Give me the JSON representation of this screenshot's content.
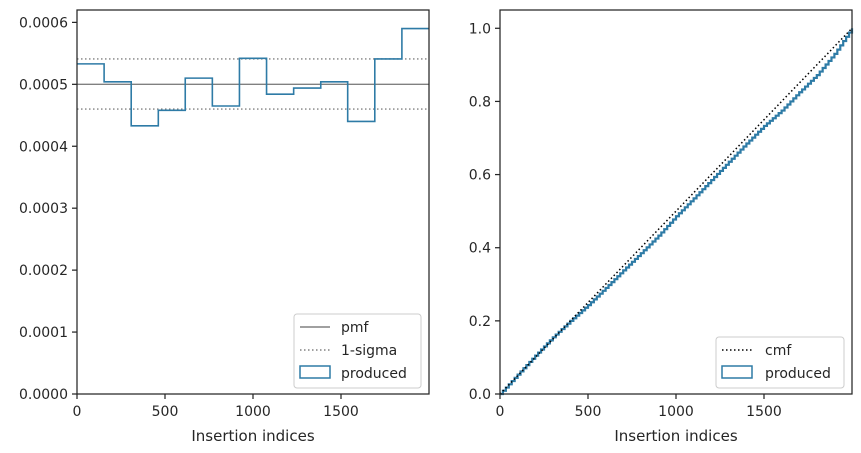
{
  "chart_data": [
    {
      "type": "histogram-step",
      "xlabel": "Insertion indices",
      "ylabel": "",
      "xlim": [
        0,
        2000
      ],
      "ylim": [
        0,
        0.00062
      ],
      "x_ticks": [
        0,
        500,
        1000,
        1500
      ],
      "x_tick_labels": [
        "0",
        "500",
        "1000",
        "1500"
      ],
      "y_ticks": [
        0,
        0.0001,
        0.0002,
        0.0003,
        0.0004,
        0.0005,
        0.0006
      ],
      "y_tick_labels": [
        "0.0000",
        "0.0001",
        "0.0002",
        "0.0003",
        "0.0004",
        "0.0005",
        "0.0006"
      ],
      "bin_edges": [
        0,
        154,
        308,
        462,
        615,
        769,
        923,
        1077,
        1231,
        1385,
        1538,
        1692,
        1846,
        2000
      ],
      "series": [
        {
          "name": "produced",
          "color": "#2e7ba6",
          "values": [
            0.000533,
            0.000504,
            0.000433,
            0.000458,
            0.00051,
            0.000465,
            0.000542,
            0.000484,
            0.000494,
            0.000504,
            0.00044,
            0.000541,
            0.00059
          ]
        }
      ],
      "reference_lines": [
        {
          "name": "pmf",
          "value": 0.0005,
          "style": "solid",
          "color": "#808080"
        },
        {
          "name": "1-sigma",
          "values": [
            0.000541,
            0.00046
          ],
          "style": "dotted",
          "color": "#808080"
        }
      ],
      "legend": {
        "placement": "lower-right",
        "entries": [
          "pmf",
          "1-sigma",
          "produced"
        ]
      }
    },
    {
      "type": "line",
      "xlabel": "Insertion indices",
      "ylabel": "",
      "xlim": [
        0,
        2000
      ],
      "ylim": [
        0,
        1.05
      ],
      "x_ticks": [
        0,
        500,
        1000,
        1500
      ],
      "x_tick_labels": [
        "0",
        "500",
        "1000",
        "1500"
      ],
      "y_ticks": [
        0,
        0.2,
        0.4,
        0.6,
        0.8,
        1.0
      ],
      "y_tick_labels": [
        "0.0",
        "0.2",
        "0.4",
        "0.6",
        "0.8",
        "1.0"
      ],
      "series": [
        {
          "name": "cmf",
          "style": "dotted",
          "color": "#000000",
          "x": [
            0,
            2000
          ],
          "y": [
            0,
            1.0
          ]
        },
        {
          "name": "produced",
          "style": "step",
          "color": "#2e7ba6",
          "x": [
            0,
            100,
            200,
            300,
            400,
            500,
            600,
            700,
            800,
            900,
            1000,
            1100,
            1200,
            1300,
            1400,
            1500,
            1600,
            1700,
            1800,
            1900,
            2000
          ],
          "y": [
            0,
            0.053,
            0.105,
            0.155,
            0.2,
            0.243,
            0.29,
            0.338,
            0.385,
            0.433,
            0.486,
            0.535,
            0.585,
            0.635,
            0.685,
            0.733,
            0.775,
            0.825,
            0.872,
            0.93,
            1.0
          ]
        }
      ],
      "legend": {
        "placement": "lower-right",
        "entries": [
          "cmf",
          "produced"
        ]
      }
    }
  ]
}
